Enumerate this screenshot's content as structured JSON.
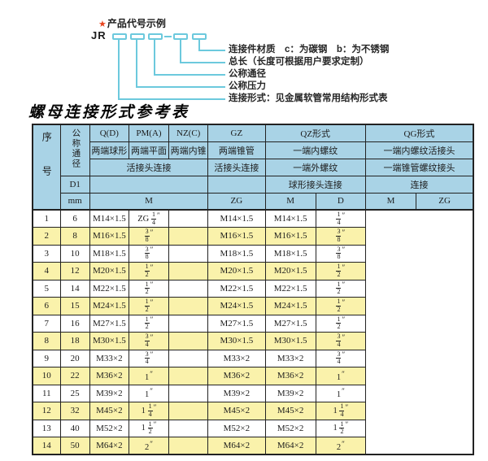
{
  "colors": {
    "header_bg": "#a9d3e6",
    "row_alt_bg": "#faf2ab",
    "border": "#222222",
    "accent_cyan": "#6cc9dd",
    "star_red": "#e8431d"
  },
  "diagram": {
    "star_icon": "★",
    "heading": "产品代号示例",
    "code_prefix": "JR",
    "labels": [
      "连接件材质　c：为碳钢　b：为不锈钢",
      "总长（长度可根据用户要求定制）",
      "公称通径",
      "公称压力",
      "连接形式：见金属软管常用结构形式表"
    ]
  },
  "table": {
    "title": "螺母连接形式参考表",
    "header": {
      "col_no": "序号",
      "col_dn": "公称通径",
      "col_q": "Q(D)",
      "col_pm": "PM(A)",
      "col_nz": "NZ(C)",
      "col_gz": "GZ",
      "col_qz": "QZ形式",
      "col_qg": "QG形式",
      "sub_q": "两端球形",
      "sub_pm": "两端平面",
      "sub_nz": "两端内锥",
      "sub_gz": "两端锥管",
      "sub_qz": "一端内螺纹",
      "sub_qg": "一端内螺纹活接头",
      "row3_left": "活接头连接",
      "row3_gz": "活接头连接",
      "row3_qz": "一端外螺纹",
      "row3_qg": "一端锥管螺纹接头",
      "d1": "D1",
      "row4_qz": "球形接头连接",
      "row4_qg": "连接",
      "mm": "mm",
      "unit_m": "M",
      "unit_gz": "ZG",
      "unit_qz_m": "M",
      "unit_qz_d": "D",
      "unit_qg_m": "M",
      "unit_qg_zg": "ZG"
    },
    "rows": [
      {
        "no": "1",
        "dn": "6",
        "m": "M14×1.5",
        "gz": "ZG 1/4\"",
        "qz_m": "",
        "qz_d": "M14×1.5",
        "qg_m": "M14×1.5",
        "qg_zg": "1/4\""
      },
      {
        "no": "2",
        "dn": "8",
        "m": "M16×1.5",
        "gz": "3/8\"",
        "qz_m": "",
        "qz_d": "M16×1.5",
        "qg_m": "M16×1.5",
        "qg_zg": "3/8\""
      },
      {
        "no": "3",
        "dn": "10",
        "m": "M18×1.5",
        "gz": "3/8\"",
        "qz_m": "",
        "qz_d": "M18×1.5",
        "qg_m": "M18×1.5",
        "qg_zg": "3/8\""
      },
      {
        "no": "4",
        "dn": "12",
        "m": "M20×1.5",
        "gz": "1/2\"",
        "qz_m": "",
        "qz_d": "M20×1.5",
        "qg_m": "M20×1.5",
        "qg_zg": "1/2\""
      },
      {
        "no": "5",
        "dn": "14",
        "m": "M22×1.5",
        "gz": "1/2\"",
        "qz_m": "",
        "qz_d": "M22×1.5",
        "qg_m": "M22×1.5",
        "qg_zg": "1/2\""
      },
      {
        "no": "6",
        "dn": "15",
        "m": "M24×1.5",
        "gz": "1/2\"",
        "qz_m": "",
        "qz_d": "M24×1.5",
        "qg_m": "M24×1.5",
        "qg_zg": "1/2\""
      },
      {
        "no": "7",
        "dn": "16",
        "m": "M27×1.5",
        "gz": "1/2\"",
        "qz_m": "",
        "qz_d": "M27×1.5",
        "qg_m": "M27×1.5",
        "qg_zg": "1/2\""
      },
      {
        "no": "8",
        "dn": "18",
        "m": "M30×1.5",
        "gz": "3/4\"",
        "qz_m": "",
        "qz_d": "M30×1.5",
        "qg_m": "M30×1.5",
        "qg_zg": "3/4\""
      },
      {
        "no": "9",
        "dn": "20",
        "m": "M33×2",
        "gz": "3/4\"",
        "qz_m": "",
        "qz_d": "M33×2",
        "qg_m": "M33×2",
        "qg_zg": "3/4\""
      },
      {
        "no": "10",
        "dn": "22",
        "m": "M36×2",
        "gz": "1\"",
        "qz_m": "",
        "qz_d": "M36×2",
        "qg_m": "M36×2",
        "qg_zg": "1\""
      },
      {
        "no": "11",
        "dn": "25",
        "m": "M39×2",
        "gz": "1\"",
        "qz_m": "",
        "qz_d": "M39×2",
        "qg_m": "M39×2",
        "qg_zg": "1\""
      },
      {
        "no": "12",
        "dn": "32",
        "m": "M45×2",
        "gz": "1 1/4\"",
        "qz_m": "",
        "qz_d": "M45×2",
        "qg_m": "M45×2",
        "qg_zg": "1 1/4\""
      },
      {
        "no": "13",
        "dn": "40",
        "m": "M52×2",
        "gz": "1 1/2\"",
        "qz_m": "",
        "qz_d": "M52×2",
        "qg_m": "M52×2",
        "qg_zg": "1 1/2\""
      },
      {
        "no": "14",
        "dn": "50",
        "m": "M64×2",
        "gz": "2\"",
        "qz_m": "",
        "qz_d": "M64×2",
        "qg_m": "M64×2",
        "qg_zg": "2\""
      }
    ]
  }
}
